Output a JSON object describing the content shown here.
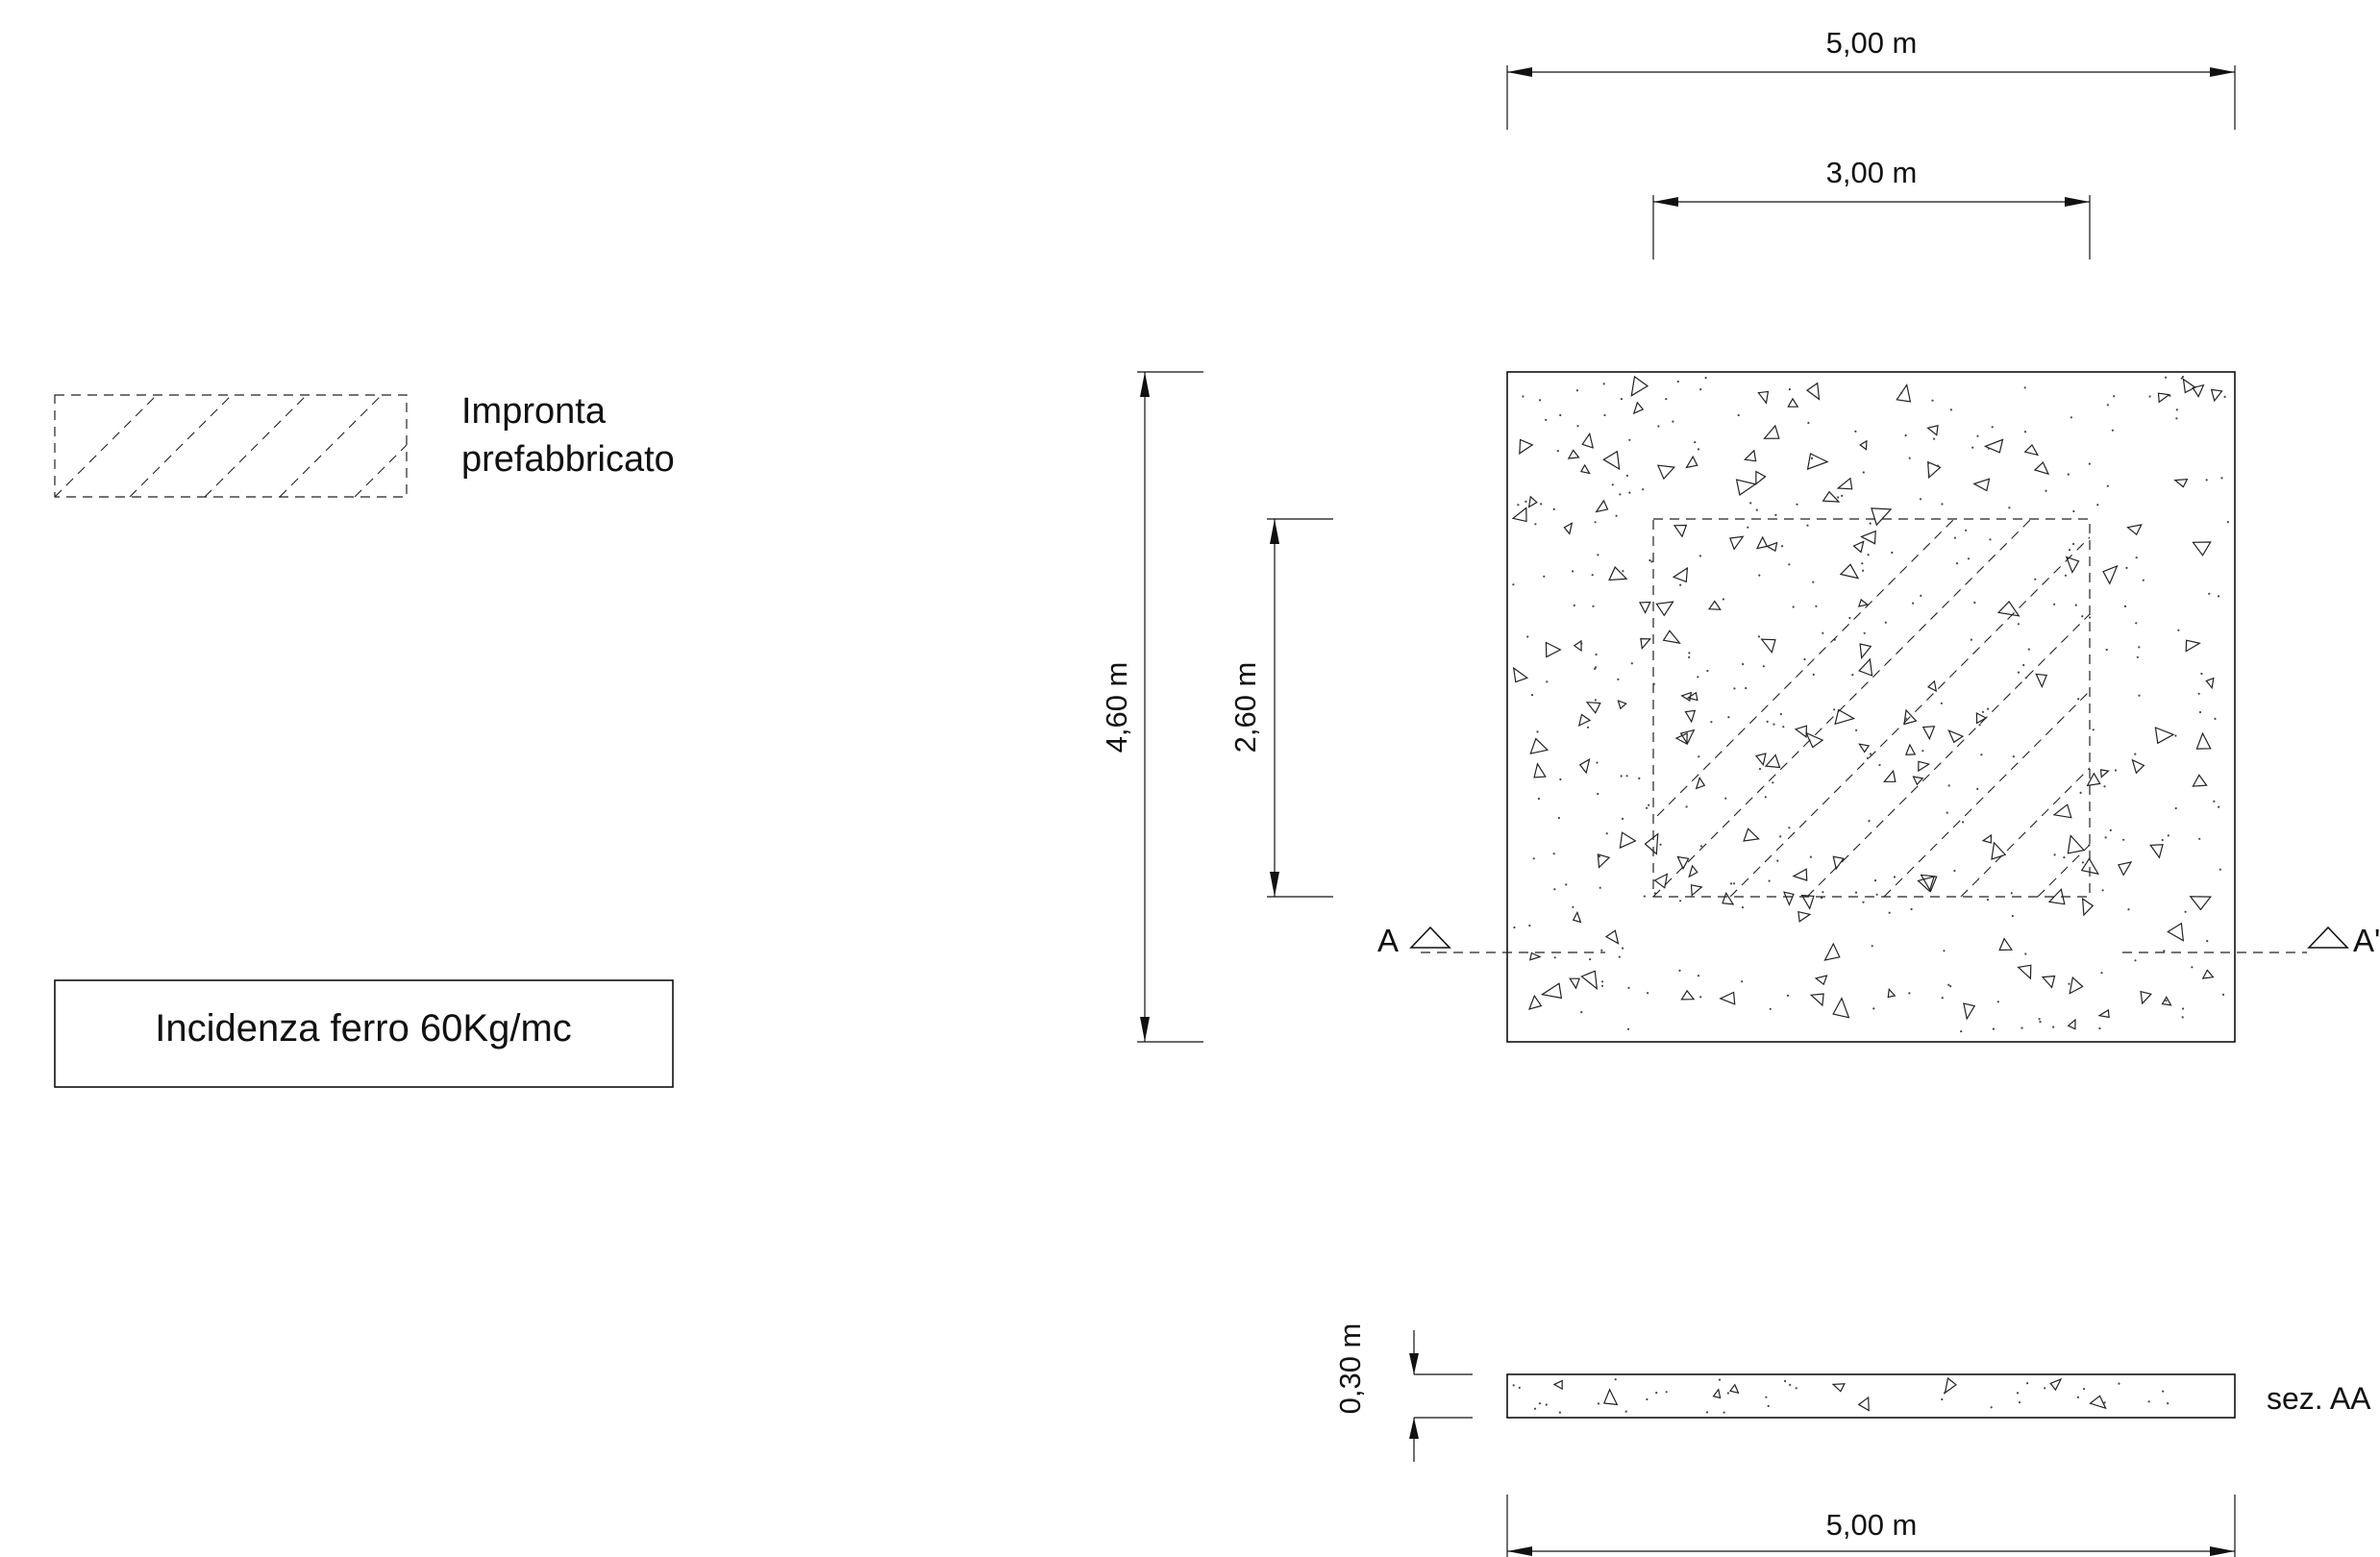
{
  "legend": {
    "hatch_label_line1": "Impronta",
    "hatch_label_line2": "prefabbricato",
    "steel_note": "Incidenza ferro  60Kg/mc"
  },
  "plan": {
    "width_total": "5,00 m",
    "width_footprint": "3,00 m",
    "height_total": "4,60 m",
    "height_footprint": "2,60 m",
    "section_mark_left": "A",
    "section_mark_right": "A'"
  },
  "section": {
    "thickness": "0,30 m",
    "width": "5,00 m",
    "label": "sez. AA"
  }
}
